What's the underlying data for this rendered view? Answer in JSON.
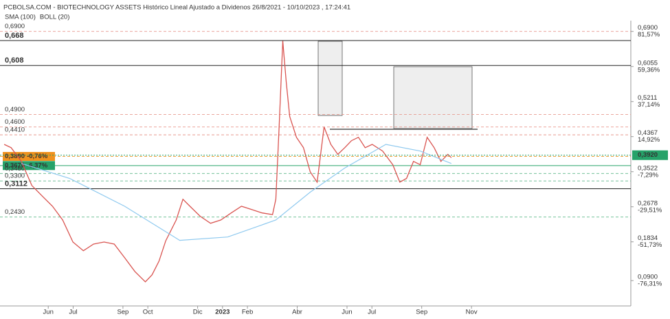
{
  "chart_data": {
    "type": "line",
    "title": "PCBOLSA.COM - BIOTECHNOLOGY ASSETS Histórico Lineal Ajustado a Dividenos 26/8/2021 - 10/10/2023 , 17:24:41",
    "indicator_labels": [
      {
        "text": "SMA (100)",
        "color": "#7fbfe8"
      },
      {
        "text": "BOLL (20)",
        "color": "#c8c8c8"
      }
    ],
    "xlim": [
      3.2,
      28.4
    ],
    "xticks": [
      {
        "value": 5,
        "label": "Jun"
      },
      {
        "value": 6,
        "label": "Jul"
      },
      {
        "value": 8,
        "label": "Sep"
      },
      {
        "value": 9,
        "label": "Oct"
      },
      {
        "value": 11,
        "label": "Dic"
      },
      {
        "value": 12,
        "label": "2023"
      },
      {
        "value": 13,
        "label": "Feb"
      },
      {
        "value": 15,
        "label": "Abr"
      },
      {
        "value": 17,
        "label": "Jun"
      },
      {
        "value": 18,
        "label": "Jul"
      },
      {
        "value": 20,
        "label": "Sep"
      },
      {
        "value": 22,
        "label": "Nov"
      }
    ],
    "ylim": [
      0.029,
      0.716
    ],
    "yticks": [
      {
        "value": 0.69,
        "label": "0,6900"
      },
      {
        "value": 0.6055,
        "label": "0,6055"
      },
      {
        "value": 0.5211,
        "label": "0,5211"
      },
      {
        "value": 0.4367,
        "label": "0,4367"
      },
      {
        "value": 0.3522,
        "label": "0,3522"
      },
      {
        "value": 0.2678,
        "label": "0,2678"
      },
      {
        "value": 0.1834,
        "label": "0,1834"
      },
      {
        "value": 0.09,
        "label": "0,0900"
      }
    ],
    "ytick_pcts": [
      "81,57%",
      "59,36%",
      "37,14%",
      "14,92%",
      "-7,29%",
      "-29,51%",
      "-51,73%",
      "-76,31%"
    ],
    "last_price": {
      "value": 0.392,
      "label": "0,3920",
      "color": "#26a269"
    },
    "levels": [
      {
        "value": 0.69,
        "label": "0,6900",
        "color": "#e8998f",
        "style": "dashed"
      },
      {
        "value": 0.668,
        "label": "0,668",
        "color": "#222222",
        "style": "solid"
      },
      {
        "value": 0.608,
        "label": "0,608",
        "color": "#222222",
        "style": "solid"
      },
      {
        "value": 0.49,
        "label": "0,4900",
        "color": "#e8998f",
        "style": "dashed"
      },
      {
        "value": 0.46,
        "label": "0,4600",
        "color": "#e8998f",
        "style": "dashed"
      },
      {
        "value": 0.441,
        "label": "0,4410",
        "color": "#e8998f",
        "style": "dashed"
      },
      {
        "value": 0.389,
        "label": "0,3890",
        "note": "-0,76%",
        "color": "#f0921e",
        "style": "dashed",
        "box": true
      },
      {
        "value": 0.367,
        "label": "0,3670",
        "note": "-6,37%",
        "color": "#26a269",
        "style": "solid",
        "box": true
      },
      {
        "value": 0.348,
        "label": "0,3480",
        "color": "#5fb88a",
        "style": "dashed"
      },
      {
        "value": 0.33,
        "label": "0,3300",
        "color": "#5fb88a",
        "style": "dashed"
      },
      {
        "value": 0.3112,
        "label": "0,3112",
        "color": "#222222",
        "style": "solid"
      },
      {
        "value": 0.243,
        "label": "0,2430",
        "color": "#5fb88a",
        "style": "dashed"
      }
    ],
    "series": [
      {
        "color": "#d9534f",
        "x": [
          3.23,
          3.51,
          3.92,
          4.34,
          4.75,
          5.17,
          5.58,
          5.99,
          6.41,
          6.82,
          7.24,
          7.65,
          8.07,
          8.48,
          8.9,
          9.17,
          9.45,
          9.72,
          10.14,
          10.41,
          10.69,
          11.1,
          11.52,
          11.93,
          12.35,
          12.76,
          13.18,
          13.59,
          14.01,
          14.14,
          14.28,
          14.42,
          14.56,
          14.7,
          14.97,
          15.25,
          15.52,
          15.8,
          16.08,
          16.35,
          16.63,
          16.91,
          17.18,
          17.46,
          17.73,
          18.01,
          18.43,
          18.84,
          19.12,
          19.39,
          19.67,
          19.94,
          20.22,
          20.5,
          20.77,
          21.05,
          21.19
        ],
        "values": [
          0.418,
          0.41,
          0.377,
          0.319,
          0.294,
          0.269,
          0.236,
          0.183,
          0.162,
          0.178,
          0.183,
          0.178,
          0.145,
          0.112,
          0.087,
          0.104,
          0.137,
          0.186,
          0.236,
          0.286,
          0.269,
          0.245,
          0.228,
          0.236,
          0.253,
          0.269,
          0.261,
          0.253,
          0.249,
          0.286,
          0.468,
          0.667,
          0.567,
          0.485,
          0.435,
          0.41,
          0.352,
          0.327,
          0.46,
          0.418,
          0.394,
          0.41,
          0.427,
          0.435,
          0.41,
          0.418,
          0.402,
          0.369,
          0.327,
          0.336,
          0.377,
          0.369,
          0.435,
          0.41,
          0.377,
          0.394,
          0.386
        ]
      },
      {
        "color": "#8ec9ef",
        "x": [
          3.92,
          5.86,
          8.07,
          10.28,
          12.21,
          14.14,
          15.52,
          16.91,
          18.56,
          19.94,
          21.19
        ],
        "values": [
          0.372,
          0.336,
          0.269,
          0.187,
          0.195,
          0.236,
          0.303,
          0.361,
          0.418,
          0.402,
          0.372
        ]
      }
    ]
  }
}
